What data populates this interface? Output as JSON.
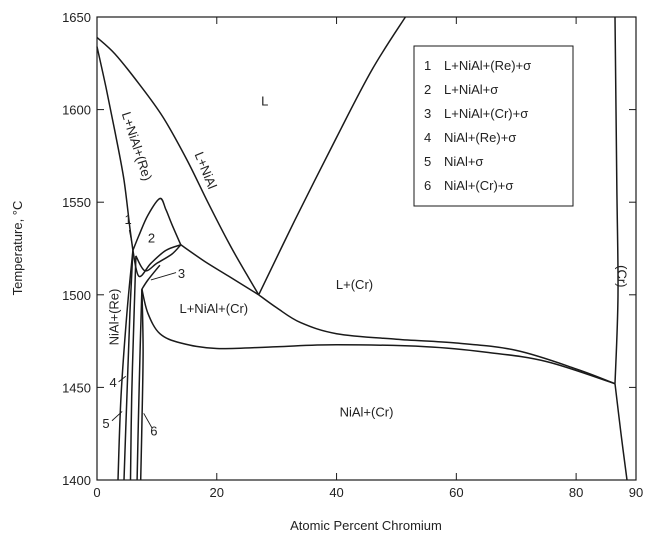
{
  "chart_data": {
    "type": "line",
    "xlabel": "Atomic Percent Chromium",
    "ylabel": "Temperature, °C",
    "xlim": [
      0,
      90
    ],
    "ylim": [
      1400,
      1650
    ],
    "x_ticks": [
      "0",
      "20",
      "40",
      "60",
      "80",
      "90"
    ],
    "y_ticks": [
      "1400",
      "1450",
      "1500",
      "1550",
      "1600",
      "1650"
    ],
    "grid": false,
    "legend": {
      "placement": "top-right",
      "entries": [
        {
          "num": "1",
          "label": "L+NiAl+(Re)+σ"
        },
        {
          "num": "2",
          "label": "L+NiAl+σ"
        },
        {
          "num": "3",
          "label": "L+NiAl+(Cr)+σ"
        },
        {
          "num": "4",
          "label": "NiAl+(Re)+σ"
        },
        {
          "num": "5",
          "label": "NiAl+σ"
        },
        {
          "num": "6",
          "label": "NiAl+(Cr)+σ"
        }
      ]
    },
    "regions": [
      {
        "label": "L",
        "x": 28,
        "y": 1604,
        "rotate": 0
      },
      {
        "label": "L+(Cr)",
        "x": 43,
        "y": 1505,
        "rotate": 0
      },
      {
        "label": "L+NiAl+(Cr)",
        "x": 19.5,
        "y": 1492,
        "rotate": 0
      },
      {
        "label": "NiAl+(Cr)",
        "x": 45,
        "y": 1436,
        "rotate": 0
      },
      {
        "label": "L+NiAl",
        "x": 18,
        "y": 1567,
        "rotate": 68
      },
      {
        "label": "L+NiAl+(Re)",
        "x": 6.5,
        "y": 1580,
        "rotate": 72
      },
      {
        "label": "NiAl+(Re)",
        "x": 3,
        "y": 1488,
        "rotate": -90
      },
      {
        "label": "(Cr)",
        "x": 87.5,
        "y": 1510,
        "rotate": 90
      }
    ],
    "region_numbers": [
      {
        "label": "1",
        "x": 5.2,
        "y": 1540
      },
      {
        "label": "2",
        "x": 9.1,
        "y": 1530
      },
      {
        "label": "3",
        "x": 14.1,
        "y": 1511
      },
      {
        "label": "4",
        "x": 2.7,
        "y": 1452
      },
      {
        "label": "5",
        "x": 1.5,
        "y": 1430
      },
      {
        "label": "6",
        "x": 9.5,
        "y": 1426
      }
    ],
    "curves": [
      {
        "name": "liquidus-outer",
        "points": [
          [
            0,
            1639
          ],
          [
            3,
            1630
          ],
          [
            7,
            1614
          ],
          [
            11,
            1596
          ],
          [
            15,
            1573
          ],
          [
            18.5,
            1550
          ],
          [
            22,
            1528
          ],
          [
            25,
            1511
          ],
          [
            27,
            1500
          ]
        ]
      },
      {
        "name": "liquidus-inner",
        "points": [
          [
            0,
            1634
          ],
          [
            1.5,
            1612
          ],
          [
            3,
            1588
          ],
          [
            4.5,
            1562
          ],
          [
            5.5,
            1536
          ],
          [
            6,
            1524
          ]
        ]
      },
      {
        "name": "L-NiAl-lower",
        "points": [
          [
            6,
            1524
          ],
          [
            7,
            1532
          ],
          [
            8.5,
            1543
          ],
          [
            10.5,
            1552
          ],
          [
            11.5,
            1546
          ],
          [
            12.5,
            1538
          ],
          [
            14,
            1527
          ]
        ]
      },
      {
        "name": "L-Cr-liquidus",
        "points": [
          [
            27,
            1500
          ],
          [
            33,
            1540
          ],
          [
            40,
            1585
          ],
          [
            46,
            1622
          ],
          [
            51.5,
            1650
          ]
        ]
      },
      {
        "name": "L-NiAl-Cr-upper",
        "points": [
          [
            14,
            1527
          ],
          [
            18,
            1518
          ],
          [
            22,
            1510
          ],
          [
            27,
            1500
          ]
        ]
      },
      {
        "name": "L-Cr-solidus",
        "points": [
          [
            27,
            1500
          ],
          [
            30,
            1493
          ],
          [
            34,
            1485
          ],
          [
            40,
            1479
          ],
          [
            50,
            1476
          ],
          [
            60,
            1474
          ],
          [
            70,
            1470
          ],
          [
            80,
            1460
          ],
          [
            86.5,
            1452
          ]
        ]
      },
      {
        "name": "NiAl-Cr-solvus",
        "points": [
          [
            7.5,
            1503
          ],
          [
            8.5,
            1490
          ],
          [
            10.5,
            1479
          ],
          [
            14,
            1474
          ],
          [
            20,
            1471
          ],
          [
            30,
            1472
          ],
          [
            40,
            1473
          ],
          [
            55,
            1472
          ],
          [
            65,
            1469
          ],
          [
            75,
            1464
          ],
          [
            86.5,
            1452
          ]
        ]
      },
      {
        "name": "Cr-phase-left",
        "points": [
          [
            86.5,
            1650
          ],
          [
            86.8,
            1560
          ],
          [
            87,
            1500
          ],
          [
            86.5,
            1452
          ]
        ]
      },
      {
        "name": "Cr-phase-right",
        "points": [
          [
            86.5,
            1452
          ],
          [
            87.5,
            1425
          ],
          [
            88.5,
            1400
          ]
        ]
      },
      {
        "name": "sigma-1",
        "points": [
          [
            6,
            1524
          ],
          [
            7,
            1510
          ],
          [
            9,
            1517
          ],
          [
            11.5,
            1524
          ],
          [
            14,
            1527
          ]
        ]
      },
      {
        "name": "sigma-2",
        "points": [
          [
            6.5,
            1521
          ],
          [
            8,
            1513
          ],
          [
            10,
            1517
          ],
          [
            12.5,
            1522
          ],
          [
            14,
            1527
          ]
        ]
      },
      {
        "name": "sigma-3",
        "points": [
          [
            7.5,
            1503
          ],
          [
            8.5,
            1508
          ],
          [
            10.5,
            1516
          ]
        ]
      },
      {
        "name": "boundary-v1",
        "points": [
          [
            6,
            1524
          ],
          [
            5,
            1490
          ],
          [
            4,
            1445
          ],
          [
            3.5,
            1400
          ]
        ]
      },
      {
        "name": "boundary-v2",
        "points": [
          [
            6,
            1524
          ],
          [
            5.5,
            1490
          ],
          [
            5,
            1445
          ],
          [
            4.5,
            1400
          ]
        ]
      },
      {
        "name": "boundary-v3",
        "points": [
          [
            6.5,
            1521
          ],
          [
            6.2,
            1490
          ],
          [
            5.8,
            1445
          ],
          [
            5.6,
            1400
          ]
        ]
      },
      {
        "name": "boundary-v4",
        "points": [
          [
            7.5,
            1503
          ],
          [
            7.2,
            1470
          ],
          [
            6.9,
            1430
          ],
          [
            6.7,
            1400
          ]
        ]
      },
      {
        "name": "boundary-v5",
        "points": [
          [
            7.5,
            1503
          ],
          [
            7.7,
            1470
          ],
          [
            7.5,
            1430
          ],
          [
            7.3,
            1400
          ]
        ]
      }
    ],
    "leaders": [
      {
        "name": "leader-1",
        "points": [
          [
            5.4,
            1535
          ],
          [
            6,
            1525
          ]
        ]
      },
      {
        "name": "leader-3",
        "points": [
          [
            13.2,
            1512
          ],
          [
            9,
            1508
          ]
        ]
      },
      {
        "name": "leader-4",
        "points": [
          [
            3.6,
            1453
          ],
          [
            4.8,
            1456
          ]
        ]
      },
      {
        "name": "leader-5",
        "points": [
          [
            2.5,
            1432
          ],
          [
            4.2,
            1437
          ]
        ]
      },
      {
        "name": "leader-6",
        "points": [
          [
            9.2,
            1428
          ],
          [
            7.8,
            1436
          ]
        ]
      }
    ]
  }
}
